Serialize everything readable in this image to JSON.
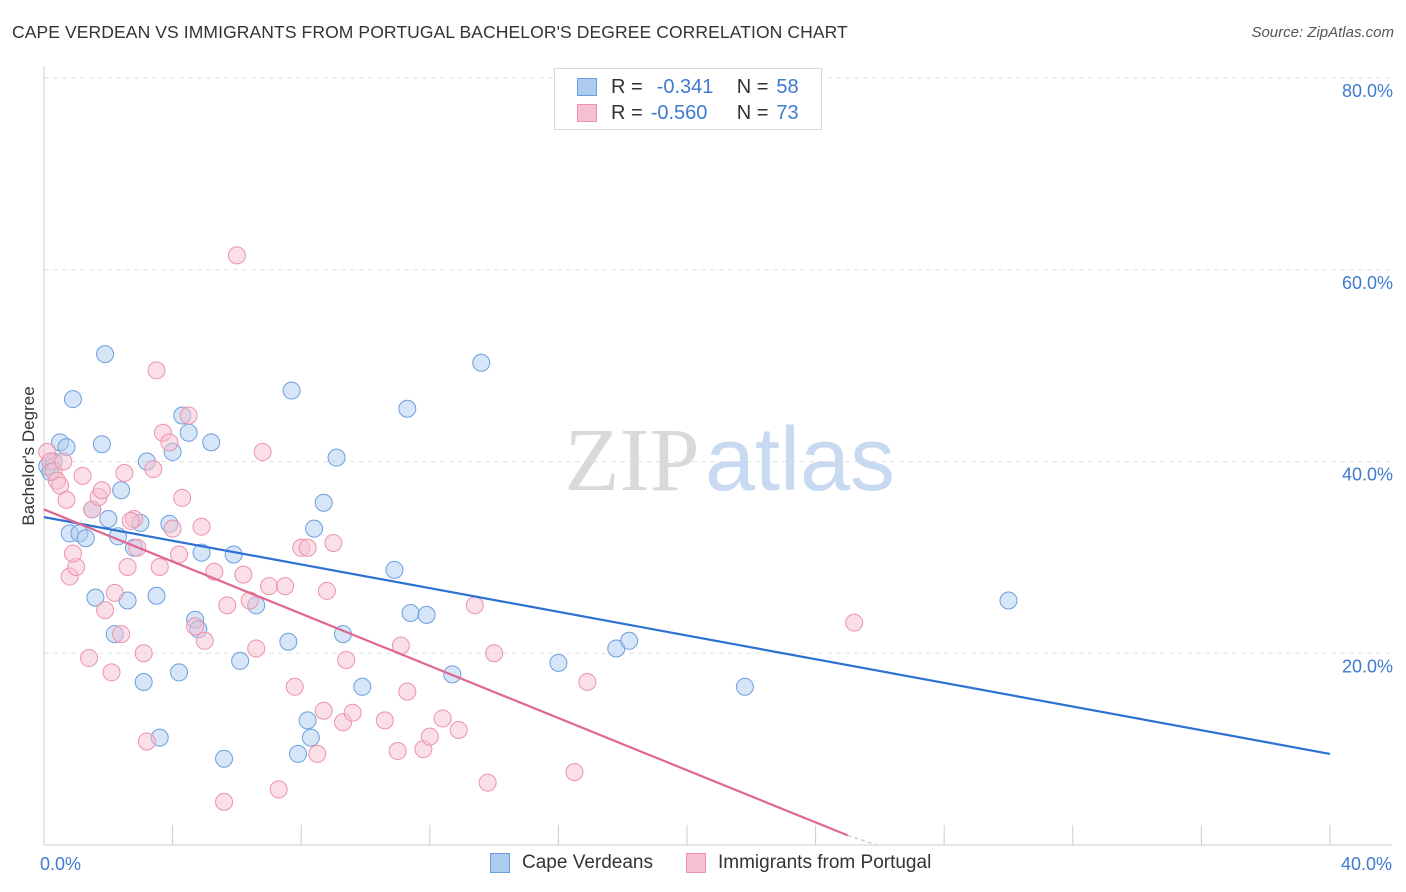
{
  "title": "CAPE VERDEAN VS IMMIGRANTS FROM PORTUGAL BACHELOR'S DEGREE CORRELATION CHART",
  "source": "Source: ZipAtlas.com",
  "watermark": {
    "zip": "ZIP",
    "atlas": "atlas"
  },
  "colors": {
    "blue_fill": "#aecbf0",
    "blue_stroke": "#6d9fdd",
    "blue_line": "#2d72d2",
    "pink_fill": "#f6c0d0",
    "pink_stroke": "#ec93ad",
    "pink_line": "#e0668f",
    "tick_text": "#3d7bd1",
    "grid": "#e2e2e2"
  },
  "legend": {
    "rows": [
      {
        "r_label": "R =",
        "r_value": "-0.341",
        "n_label": "N =",
        "n_value": "58"
      },
      {
        "r_label": "R =",
        "r_value": "-0.560",
        "n_label": "N =",
        "n_value": "73"
      }
    ]
  },
  "bottom_legend": {
    "blue": "Cape Verdeans",
    "pink": "Immigrants from Portugal"
  },
  "chart_data": {
    "type": "scatter",
    "ylabel": "Bachelor's Degree",
    "xlim": [
      0,
      40
    ],
    "ylim": [
      0,
      80
    ],
    "y_ticks": [
      {
        "value": 20,
        "label": "20.0%"
      },
      {
        "value": 40,
        "label": "40.0%"
      },
      {
        "value": 60,
        "label": "60.0%"
      },
      {
        "value": 80,
        "label": "80.0%"
      }
    ],
    "x_ticks": [
      {
        "value": 0,
        "label": "0.0%"
      },
      {
        "value": 40,
        "label": "40.0%"
      }
    ],
    "x_minor_ticks": [
      4,
      8,
      12,
      16,
      20,
      24,
      28,
      32,
      36,
      40
    ],
    "grid": true,
    "series": [
      {
        "name": "Cape Verdeans",
        "color": "blue",
        "trend": {
          "x": [
            0,
            40
          ],
          "y": [
            34.2,
            9.5
          ]
        },
        "points": [
          [
            0.1,
            39.5
          ],
          [
            0.3,
            40.0
          ],
          [
            0.5,
            42.0
          ],
          [
            0.7,
            41.5
          ],
          [
            0.9,
            46.5
          ],
          [
            0.8,
            32.5
          ],
          [
            1.1,
            32.5
          ],
          [
            1.3,
            32.0
          ],
          [
            1.6,
            25.8
          ],
          [
            1.8,
            41.8
          ],
          [
            1.9,
            51.2
          ],
          [
            2.0,
            34.0
          ],
          [
            2.2,
            22.0
          ],
          [
            2.3,
            32.2
          ],
          [
            2.4,
            37.0
          ],
          [
            2.6,
            25.5
          ],
          [
            2.8,
            31.0
          ],
          [
            3.0,
            33.6
          ],
          [
            3.1,
            17.0
          ],
          [
            3.2,
            40.0
          ],
          [
            3.5,
            26.0
          ],
          [
            3.6,
            11.2
          ],
          [
            3.9,
            33.5
          ],
          [
            4.0,
            41.0
          ],
          [
            4.2,
            18.0
          ],
          [
            4.3,
            44.8
          ],
          [
            4.5,
            43.0
          ],
          [
            4.7,
            23.5
          ],
          [
            4.8,
            22.5
          ],
          [
            4.9,
            30.5
          ],
          [
            5.2,
            42.0
          ],
          [
            5.6,
            9.0
          ],
          [
            5.9,
            30.3
          ],
          [
            6.1,
            19.2
          ],
          [
            6.6,
            25.0
          ],
          [
            7.6,
            21.2
          ],
          [
            7.7,
            47.4
          ],
          [
            7.9,
            9.5
          ],
          [
            8.2,
            13.0
          ],
          [
            8.3,
            11.2
          ],
          [
            8.4,
            33.0
          ],
          [
            8.7,
            35.7
          ],
          [
            9.1,
            40.4
          ],
          [
            9.3,
            22.0
          ],
          [
            9.9,
            16.5
          ],
          [
            10.9,
            28.7
          ],
          [
            11.3,
            45.5
          ],
          [
            11.4,
            24.2
          ],
          [
            11.9,
            24.0
          ],
          [
            12.7,
            17.8
          ],
          [
            13.6,
            50.3
          ],
          [
            16.0,
            19.0
          ],
          [
            17.8,
            20.5
          ],
          [
            18.2,
            21.3
          ],
          [
            21.8,
            16.5
          ],
          [
            30.0,
            25.5
          ],
          [
            0.2,
            38.9
          ],
          [
            1.5,
            35.0
          ]
        ]
      },
      {
        "name": "Immigrants from Portugal",
        "color": "pink",
        "trend": {
          "x": [
            0,
            25.0
          ],
          "y": [
            35.0,
            1.0
          ]
        },
        "points": [
          [
            0.1,
            41.0
          ],
          [
            0.2,
            40.0
          ],
          [
            0.3,
            39.0
          ],
          [
            0.4,
            38.0
          ],
          [
            0.5,
            37.5
          ],
          [
            0.6,
            40.0
          ],
          [
            0.7,
            36.0
          ],
          [
            0.8,
            28.0
          ],
          [
            1.0,
            29.0
          ],
          [
            1.2,
            38.5
          ],
          [
            1.4,
            19.5
          ],
          [
            1.5,
            35.0
          ],
          [
            1.7,
            36.3
          ],
          [
            1.8,
            37.0
          ],
          [
            1.9,
            24.5
          ],
          [
            2.1,
            18.0
          ],
          [
            2.2,
            26.3
          ],
          [
            2.4,
            22.0
          ],
          [
            2.5,
            38.8
          ],
          [
            2.6,
            29.0
          ],
          [
            2.8,
            34.0
          ],
          [
            2.9,
            31.0
          ],
          [
            3.1,
            20.0
          ],
          [
            3.2,
            10.8
          ],
          [
            3.4,
            39.2
          ],
          [
            3.5,
            49.5
          ],
          [
            3.6,
            29.0
          ],
          [
            3.7,
            43.0
          ],
          [
            3.9,
            42.0
          ],
          [
            4.0,
            33.0
          ],
          [
            4.2,
            30.3
          ],
          [
            4.3,
            36.2
          ],
          [
            4.5,
            44.8
          ],
          [
            4.7,
            22.8
          ],
          [
            4.9,
            33.2
          ],
          [
            5.0,
            21.3
          ],
          [
            5.3,
            28.5
          ],
          [
            5.6,
            4.5
          ],
          [
            5.7,
            25.0
          ],
          [
            6.0,
            61.5
          ],
          [
            6.2,
            28.2
          ],
          [
            6.4,
            25.5
          ],
          [
            6.6,
            20.5
          ],
          [
            6.8,
            41.0
          ],
          [
            7.0,
            27.0
          ],
          [
            7.3,
            5.8
          ],
          [
            7.5,
            27.0
          ],
          [
            7.8,
            16.5
          ],
          [
            8.0,
            31.0
          ],
          [
            8.2,
            31.0
          ],
          [
            8.5,
            9.5
          ],
          [
            8.7,
            14.0
          ],
          [
            8.8,
            26.5
          ],
          [
            9.0,
            31.5
          ],
          [
            9.3,
            12.8
          ],
          [
            9.4,
            19.3
          ],
          [
            9.6,
            13.8
          ],
          [
            10.6,
            13.0
          ],
          [
            11.0,
            9.8
          ],
          [
            11.1,
            20.8
          ],
          [
            11.3,
            16.0
          ],
          [
            11.8,
            10.0
          ],
          [
            12.0,
            11.3
          ],
          [
            12.4,
            13.2
          ],
          [
            12.9,
            12.0
          ],
          [
            13.4,
            25.0
          ],
          [
            13.8,
            6.5
          ],
          [
            14.0,
            20.0
          ],
          [
            16.5,
            7.6
          ],
          [
            16.9,
            17.0
          ],
          [
            25.2,
            23.2
          ],
          [
            0.9,
            30.4
          ],
          [
            2.7,
            33.8
          ]
        ]
      }
    ]
  }
}
